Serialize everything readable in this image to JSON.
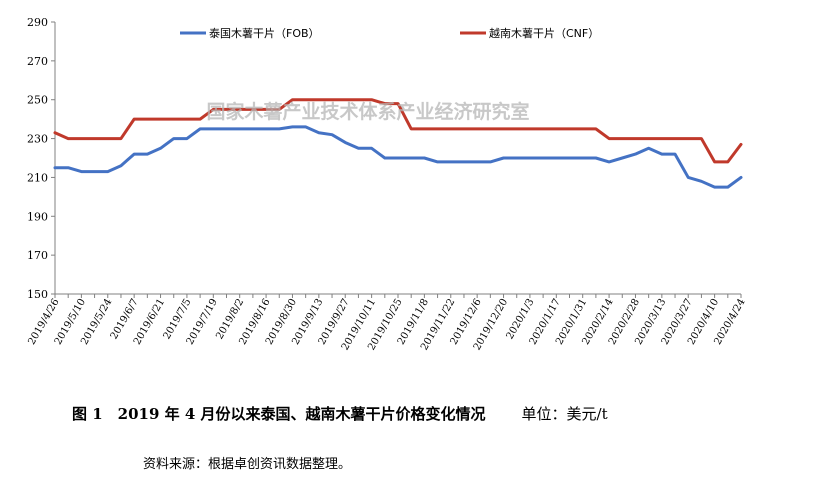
{
  "chart_data": {
    "type": "line",
    "watermark": "国家木薯产业技术体系产业经济研究室",
    "x": [
      "2019/4/26",
      "2019/5/3",
      "2019/5/10",
      "2019/5/17",
      "2019/5/24",
      "2019/5/31",
      "2019/6/7",
      "2019/6/14",
      "2019/6/21",
      "2019/6/28",
      "2019/7/5",
      "2019/7/12",
      "2019/7/19",
      "2019/7/26",
      "2019/8/2",
      "2019/8/9",
      "2019/8/16",
      "2019/8/23",
      "2019/8/30",
      "2019/9/6",
      "2019/9/13",
      "2019/9/20",
      "2019/9/27",
      "2019/10/4",
      "2019/10/11",
      "2019/10/18",
      "2019/10/25",
      "2019/11/1",
      "2019/11/8",
      "2019/11/15",
      "2019/11/22",
      "2019/11/29",
      "2019/12/6",
      "2019/12/13",
      "2019/12/20",
      "2019/12/27",
      "2020/1/3",
      "2020/1/10",
      "2020/1/17",
      "2020/1/24",
      "2020/1/31",
      "2020/2/7",
      "2020/2/14",
      "2020/2/21",
      "2020/2/28",
      "2020/3/6",
      "2020/3/13",
      "2020/3/20",
      "2020/3/27",
      "2020/4/3",
      "2020/4/10",
      "2020/4/17",
      "2020/4/24"
    ],
    "tick_labels": [
      "2019/4/26",
      "2019/5/10",
      "2019/5/24",
      "2019/6/7",
      "2019/6/21",
      "2019/7/5",
      "2019/7/19",
      "2019/8/2",
      "2019/8/16",
      "2019/8/30",
      "2019/9/13",
      "2019/9/27",
      "2019/10/11",
      "2019/10/25",
      "2019/11/8",
      "2019/11/22",
      "2019/12/6",
      "2019/12/20",
      "2020/1/3",
      "2020/1/17",
      "2020/1/31",
      "2020/2/14",
      "2020/2/28",
      "2020/3/13",
      "2020/3/27",
      "2020/4/10",
      "2020/4/24"
    ],
    "series": [
      {
        "name": "泰国木薯干片（FOB）",
        "color": "#4472C4",
        "values": [
          215,
          215,
          213,
          213,
          213,
          216,
          222,
          222,
          225,
          230,
          230,
          235,
          235,
          235,
          235,
          235,
          235,
          235,
          236,
          236,
          233,
          232,
          228,
          225,
          225,
          220,
          220,
          220,
          220,
          218,
          218,
          218,
          218,
          218,
          220,
          220,
          220,
          220,
          220,
          220,
          220,
          220,
          218,
          220,
          222,
          225,
          222,
          222,
          210,
          208,
          205,
          205,
          210
        ]
      },
      {
        "name": "越南木薯干片（CNF）",
        "color": "#C0392B",
        "values": [
          233,
          230,
          230,
          230,
          230,
          230,
          240,
          240,
          240,
          240,
          240,
          240,
          245,
          245,
          245,
          245,
          245,
          245,
          250,
          250,
          250,
          250,
          250,
          250,
          250,
          248,
          248,
          235,
          235,
          235,
          235,
          235,
          235,
          235,
          235,
          235,
          235,
          235,
          235,
          235,
          235,
          235,
          230,
          230,
          230,
          230,
          230,
          230,
          230,
          230,
          218,
          218,
          227
        ]
      }
    ],
    "ylim": [
      150,
      290
    ],
    "yticks": [
      "150",
      "170",
      "190",
      "210",
      "230",
      "250",
      "270",
      "290"
    ],
    "legend": "top"
  },
  "caption": {
    "title": "图 1　2019 年 4 月份以来泰国、越南木薯干片价格变化情况",
    "unit": "单位：美元/t"
  },
  "source": "资料来源：根据卓创资讯数据整理。"
}
